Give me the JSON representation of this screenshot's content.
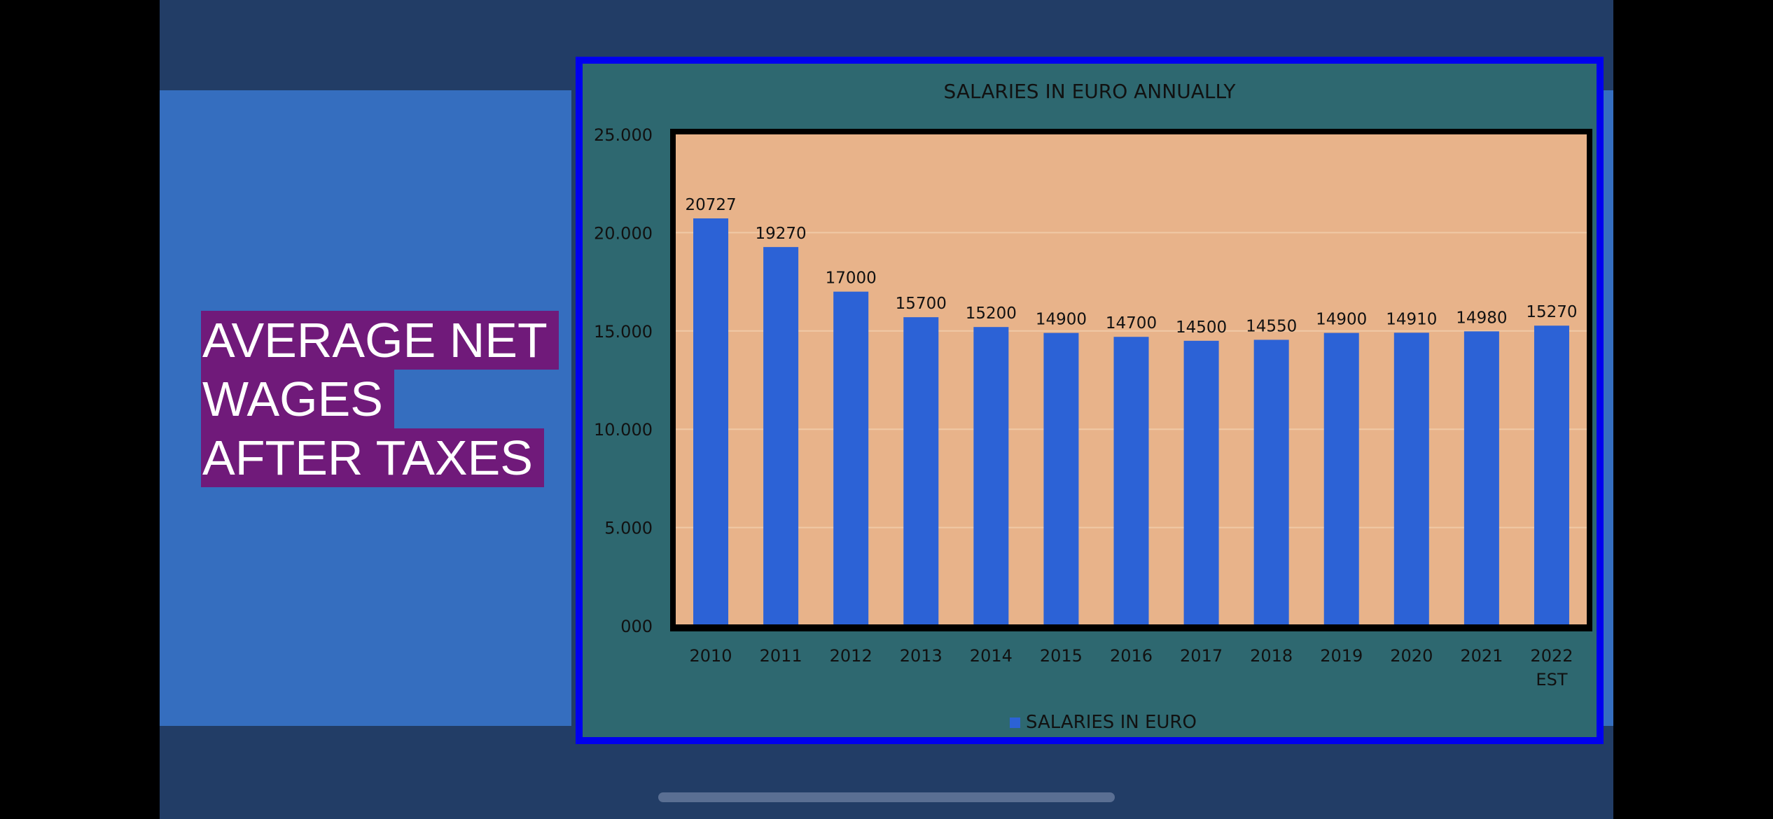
{
  "slide": {
    "title_lines": [
      "AVERAGE NET",
      "WAGES",
      "AFTER TAXES"
    ]
  },
  "colors": {
    "background": "#223d66",
    "panel": "#356ebf",
    "title_highlight": "#701a7a",
    "chart_border": "#0000ee",
    "chart_background": "#2e6870",
    "plot_area": "#e8b38a",
    "bar": "#2c62d6"
  },
  "chart_data": {
    "type": "bar",
    "title": "SALARIES IN EURO ANNUALLY",
    "categories": [
      "2010",
      "2011",
      "2012",
      "2013",
      "2014",
      "2015",
      "2016",
      "2017",
      "2018",
      "2019",
      "2020",
      "2021",
      "2022\nEST"
    ],
    "series": [
      {
        "name": "SALARIES IN EURO",
        "values": [
          20727,
          19270,
          17000,
          15700,
          15200,
          14900,
          14700,
          14500,
          14550,
          14900,
          14910,
          14980,
          15270
        ]
      }
    ],
    "data_labels": [
      "20727",
      "19270",
      "17000",
      "15700",
      "15200",
      "14900",
      "14700",
      "14500",
      "14550",
      "14900",
      "14910",
      "14980",
      "15270"
    ],
    "y_tick_labels": [
      "000",
      "5.000",
      "10.000",
      "15.000",
      "20.000",
      "25.000"
    ],
    "y_ticks": [
      0,
      5000,
      10000,
      15000,
      20000,
      25000
    ],
    "ylim": [
      0,
      25000
    ],
    "grid": true,
    "legend_position": "bottom"
  }
}
